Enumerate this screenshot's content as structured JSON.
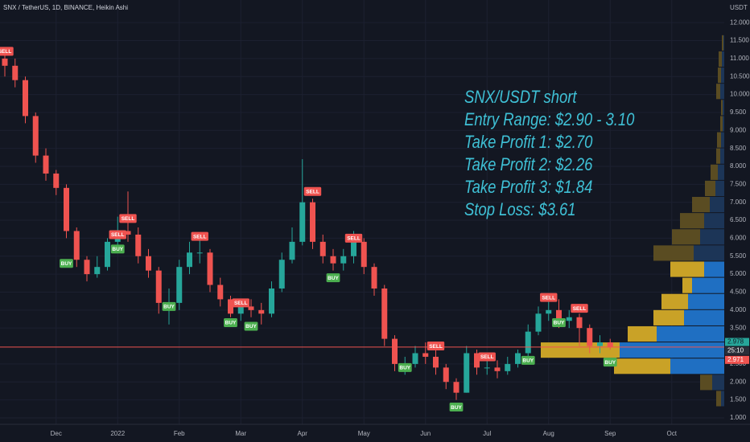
{
  "chart_data": {
    "type": "candlestick",
    "header": "SNX / TetherUS, 1D, BINANCE, Heikin Ashi",
    "currency": "USDT",
    "categories": [
      null,
      null,
      null,
      null,
      null,
      "Dec",
      null,
      null,
      null,
      null,
      null,
      "2022",
      null,
      null,
      null,
      null,
      null,
      "Feb",
      null,
      null,
      null,
      null,
      null,
      "Mar",
      null,
      null,
      null,
      null,
      null,
      "Apr",
      null,
      null,
      null,
      null,
      null,
      "May",
      null,
      null,
      null,
      null,
      null,
      "Jun",
      null,
      null,
      null,
      null,
      null,
      "Jul",
      null,
      null,
      null,
      null,
      null,
      "Aug",
      null,
      null,
      null,
      null,
      null,
      "Sep",
      null,
      null,
      null,
      null,
      null,
      "Oct"
    ],
    "open": [
      11.0,
      10.8,
      10.4,
      9.4,
      8.3,
      7.8,
      7.4,
      6.2,
      5.4,
      5.0,
      5.2,
      5.9,
      6.2,
      6.1,
      5.5,
      5.1,
      4.2,
      4.2,
      5.2,
      5.6,
      5.6,
      4.7,
      4.3,
      3.9,
      4.1,
      4.0,
      3.9,
      4.6,
      5.4,
      5.9,
      7.0,
      5.9,
      5.5,
      5.3,
      5.5,
      5.9,
      5.2,
      4.6,
      3.2,
      2.5,
      2.5,
      2.8,
      2.7,
      2.4,
      2.0,
      1.7,
      2.8,
      2.4,
      2.4,
      2.3,
      2.5,
      2.8,
      3.4,
      3.9,
      4.0,
      3.7,
      3.8,
      3.5,
      3.0,
      3.1,
      null,
      null,
      null,
      null,
      null,
      null
    ],
    "high": [
      11.25,
      11.0,
      10.5,
      9.5,
      8.5,
      7.9,
      7.5,
      6.3,
      5.5,
      5.5,
      6.0,
      6.6,
      7.3,
      6.3,
      5.7,
      5.2,
      4.6,
      5.4,
      5.9,
      6.0,
      5.7,
      4.9,
      4.4,
      4.3,
      4.3,
      4.2,
      4.8,
      5.6,
      6.3,
      8.2,
      7.1,
      6.1,
      5.7,
      5.7,
      6.2,
      6.0,
      5.3,
      4.7,
      3.3,
      2.7,
      3.0,
      3.1,
      2.9,
      2.5,
      2.1,
      3.0,
      2.9,
      2.6,
      2.6,
      2.7,
      2.9,
      3.6,
      4.1,
      4.4,
      4.3,
      4.0,
      3.9,
      3.6,
      3.3,
      3.2,
      null,
      null,
      null,
      null,
      null,
      null
    ],
    "low": [
      10.5,
      10.2,
      9.2,
      8.1,
      7.6,
      7.2,
      6.0,
      5.2,
      4.8,
      4.9,
      5.1,
      5.8,
      5.9,
      5.3,
      4.9,
      3.9,
      3.6,
      4.0,
      5.0,
      5.3,
      4.5,
      4.1,
      3.8,
      3.7,
      3.8,
      3.6,
      3.8,
      4.5,
      5.3,
      5.8,
      5.7,
      5.3,
      5.1,
      5.1,
      5.3,
      5.0,
      4.4,
      3.0,
      2.3,
      2.2,
      2.4,
      2.5,
      2.2,
      1.8,
      1.5,
      1.7,
      2.2,
      2.2,
      2.1,
      2.2,
      2.4,
      2.7,
      3.3,
      3.7,
      3.5,
      3.5,
      3.0,
      2.8,
      2.8,
      2.9,
      null,
      null,
      null,
      null,
      null,
      null
    ],
    "close": [
      10.8,
      10.4,
      9.4,
      8.3,
      7.8,
      7.4,
      6.2,
      5.4,
      5.0,
      5.2,
      5.9,
      6.2,
      6.1,
      5.5,
      5.1,
      4.2,
      4.2,
      5.2,
      5.6,
      5.6,
      4.7,
      4.3,
      3.9,
      4.1,
      4.0,
      3.9,
      4.6,
      5.4,
      5.9,
      7.0,
      5.9,
      5.5,
      5.3,
      5.5,
      5.9,
      5.2,
      4.6,
      3.2,
      2.5,
      2.5,
      2.8,
      2.7,
      2.4,
      2.0,
      1.7,
      2.8,
      2.4,
      2.4,
      2.3,
      2.5,
      2.8,
      3.4,
      3.9,
      4.0,
      3.7,
      3.8,
      3.5,
      3.0,
      3.1,
      2.98,
      null,
      null,
      null,
      null,
      null,
      null
    ],
    "up_color": "#26a69a",
    "down_color": "#ef5350",
    "ylim": [
      0.82,
      12.63
    ],
    "yticks": [
      {
        "value": 1,
        "label": "1.000"
      },
      {
        "value": 1.5,
        "label": "1.500"
      },
      {
        "value": 2,
        "label": "2.000"
      },
      {
        "value": 2.5,
        "label": "2.500"
      },
      {
        "value": 3.5,
        "label": "3.500"
      },
      {
        "value": 4,
        "label": "4.000"
      },
      {
        "value": 4.5,
        "label": "4.500"
      },
      {
        "value": 5,
        "label": "5.000"
      },
      {
        "value": 5.5,
        "label": "5.500"
      },
      {
        "value": 6,
        "label": "6.000"
      },
      {
        "value": 6.5,
        "label": "6.500"
      },
      {
        "value": 7,
        "label": "7.000"
      },
      {
        "value": 7.5,
        "label": "7.500"
      },
      {
        "value": 8,
        "label": "8.000"
      },
      {
        "value": 8.5,
        "label": "8.500"
      },
      {
        "value": 9,
        "label": "9.000"
      },
      {
        "value": 9.5,
        "label": "9.500"
      },
      {
        "value": 10,
        "label": "10.000"
      },
      {
        "value": 10.5,
        "label": "10.500"
      },
      {
        "value": 11,
        "label": "11.000"
      },
      {
        "value": 11.5,
        "label": "11.500"
      },
      {
        "value": 12,
        "label": "12.000"
      }
    ],
    "grid": true,
    "signals": [
      {
        "text": "SELL",
        "x": 0,
        "y": 11.2
      },
      {
        "text": "BUY",
        "x": 6,
        "y": 5.3
      },
      {
        "text": "SELL",
        "x": 11,
        "y": 6.1
      },
      {
        "text": "BUY",
        "x": 11,
        "y": 5.7
      },
      {
        "text": "SELL",
        "x": 12,
        "y": 6.55
      },
      {
        "text": "BUY",
        "x": 16,
        "y": 4.1
      },
      {
        "text": "SELL",
        "x": 19,
        "y": 6.05
      },
      {
        "text": "BUY",
        "x": 22,
        "y": 3.65
      },
      {
        "text": "SELL",
        "x": 23,
        "y": 4.2
      },
      {
        "text": "BUY",
        "x": 24,
        "y": 3.55
      },
      {
        "text": "SELL",
        "x": 30,
        "y": 7.3
      },
      {
        "text": "BUY",
        "x": 32,
        "y": 4.9
      },
      {
        "text": "SELL",
        "x": 34,
        "y": 6.0
      },
      {
        "text": "BUY",
        "x": 39,
        "y": 2.4
      },
      {
        "text": "SELL",
        "x": 42,
        "y": 3.0
      },
      {
        "text": "BUY",
        "x": 44,
        "y": 1.3
      },
      {
        "text": "SELL",
        "x": 47,
        "y": 2.7
      },
      {
        "text": "BUY",
        "x": 51,
        "y": 2.6
      },
      {
        "text": "SELL",
        "x": 53,
        "y": 4.35
      },
      {
        "text": "BUY",
        "x": 54,
        "y": 3.65
      },
      {
        "text": "SELL",
        "x": 56,
        "y": 4.05
      },
      {
        "text": "BUY",
        "x": 59,
        "y": 2.55
      }
    ],
    "sell_color": "#ef5350",
    "buy_color": "#4caf50",
    "annotation": [
      "SNX/USDT short",
      "Entry Range: $2.90 - 3.10",
      "Take Profit 1: $2.70",
      "Take Profit 2: $2.26",
      "Take Profit 3: $1.84",
      "Stop Loss: $3.61"
    ],
    "annotation_color": "#3fc1d6",
    "price_tags": [
      {
        "value": 2.978,
        "color": "#26a69a"
      },
      {
        "value": 2.971,
        "color": "#ef5350"
      }
    ],
    "countdown": "25:10",
    "volume_profile": {
      "bins": [
        1.3,
        1.75,
        2.2,
        2.65,
        3.1,
        3.55,
        4.0,
        4.45,
        4.9,
        5.35,
        5.8,
        6.25,
        6.7,
        7.15,
        7.6,
        8.05,
        8.5,
        8.95,
        9.4,
        9.85,
        10.3,
        10.75,
        11.2,
        11.65
      ],
      "down": [
        6,
        15,
        70,
        98,
        36,
        38,
        33,
        12,
        42,
        50,
        35,
        30,
        22,
        13,
        9,
        5,
        5,
        3,
        2,
        5,
        4,
        4,
        2
      ],
      "up": [
        4,
        15,
        67,
        130,
        84,
        50,
        45,
        40,
        25,
        38,
        30,
        25,
        18,
        11,
        8,
        5,
        4,
        2,
        2,
        5,
        4,
        3,
        1
      ],
      "value_area": [
        2.2,
        5.35
      ],
      "down_color": "#c9a227",
      "up_color": "#1f6fc2",
      "dim_down_color": "#5a4c22",
      "dim_up_color": "#1c3557"
    }
  }
}
